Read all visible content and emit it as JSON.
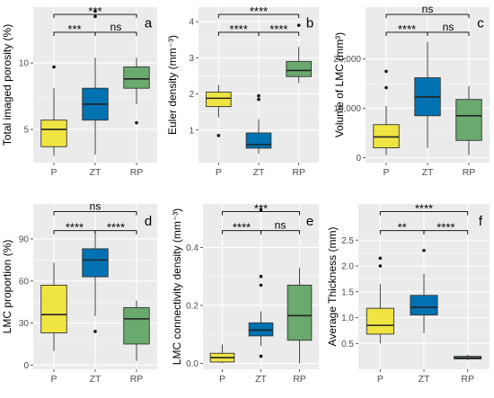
{
  "groups": [
    "P",
    "ZT",
    "RP"
  ],
  "colors": {
    "P": "#f0e442",
    "ZT": "#0072b2",
    "RP": "#6aaa6e",
    "axis": "#333333",
    "grid": "#ffffff"
  },
  "chart_data": [
    {
      "type": "box",
      "panel_letter": "a",
      "ylabel": "Total imaged porosity (%)",
      "ylim": [
        2.5,
        14.2
      ],
      "yticks": [
        5,
        10
      ],
      "yticklabels": [
        "5",
        "10"
      ],
      "categories": [
        "P",
        "ZT",
        "RP"
      ],
      "boxes": [
        {
          "group": "P",
          "whisker_low": 3.0,
          "q1": 3.7,
          "median": 5.0,
          "q3": 5.7,
          "whisker_high": 8.1,
          "outliers": [
            9.7
          ]
        },
        {
          "group": "ZT",
          "whisker_low": 3.1,
          "q1": 5.7,
          "median": 6.9,
          "q3": 8.1,
          "whisker_high": 10.4,
          "outliers": [
            13.5,
            13.9
          ]
        },
        {
          "group": "RP",
          "whisker_low": 6.9,
          "q1": 8.1,
          "median": 8.8,
          "q3": 9.7,
          "whisker_high": 10.4,
          "outliers": [
            5.5
          ]
        }
      ],
      "significance": [
        {
          "from": "P",
          "to": "ZT",
          "label": "***"
        },
        {
          "from": "ZT",
          "to": "RP",
          "label": "ns"
        },
        {
          "from": "P",
          "to": "RP",
          "label": "***"
        }
      ]
    },
    {
      "type": "box",
      "panel_letter": "b",
      "ylabel": "Euler density (mm⁻³)",
      "ylim": [
        0.1,
        4.4
      ],
      "yticks": [
        1,
        2,
        3,
        4
      ],
      "yticklabels": [
        "1",
        "2",
        "3",
        "4"
      ],
      "categories": [
        "P",
        "ZT",
        "RP"
      ],
      "boxes": [
        {
          "group": "P",
          "whisker_low": 1.35,
          "q1": 1.65,
          "median": 1.88,
          "q3": 2.05,
          "whisker_high": 2.25,
          "outliers": [
            0.85
          ]
        },
        {
          "group": "ZT",
          "whisker_low": 0.35,
          "q1": 0.5,
          "median": 0.6,
          "q3": 0.92,
          "whisker_high": 1.3,
          "outliers": [
            1.85,
            1.95
          ]
        },
        {
          "group": "RP",
          "whisker_low": 2.3,
          "q1": 2.48,
          "median": 2.65,
          "q3": 2.9,
          "whisker_high": 3.3,
          "outliers": [
            3.9
          ]
        }
      ],
      "significance": [
        {
          "from": "P",
          "to": "ZT",
          "label": "****"
        },
        {
          "from": "ZT",
          "to": "RP",
          "label": "****"
        },
        {
          "from": "P",
          "to": "RP",
          "label": "****"
        }
      ]
    },
    {
      "type": "box",
      "panel_letter": "c",
      "ylabel": "Volume of LMC (mm³)",
      "ylim": [
        -1000,
        30500
      ],
      "yticks": [
        0,
        10000,
        20000
      ],
      "yticklabels": [
        "0",
        "10,000",
        "20,000"
      ],
      "categories": [
        "P",
        "ZT",
        "RP"
      ],
      "boxes": [
        {
          "group": "P",
          "whisker_low": 500,
          "q1": 2000,
          "median": 4200,
          "q3": 6700,
          "whisker_high": 10500,
          "outliers": [
            14200,
            17500
          ]
        },
        {
          "group": "ZT",
          "whisker_low": 2000,
          "q1": 8500,
          "median": 12300,
          "q3": 16200,
          "whisker_high": 23500,
          "outliers": []
        },
        {
          "group": "RP",
          "whisker_low": 500,
          "q1": 3500,
          "median": 8500,
          "q3": 11800,
          "whisker_high": 14500,
          "outliers": []
        }
      ],
      "significance": [
        {
          "from": "P",
          "to": "ZT",
          "label": "****"
        },
        {
          "from": "ZT",
          "to": "RP",
          "label": "ns"
        },
        {
          "from": "P",
          "to": "RP",
          "label": "ns"
        }
      ]
    },
    {
      "type": "box",
      "panel_letter": "d",
      "ylabel": "LMC proportion (%)",
      "ylim": [
        -3,
        115
      ],
      "yticks": [
        0,
        30,
        60,
        90
      ],
      "yticklabels": [
        "0",
        "30",
        "60",
        "90"
      ],
      "categories": [
        "P",
        "ZT",
        "RP"
      ],
      "boxes": [
        {
          "group": "P",
          "whisker_low": 10,
          "q1": 23,
          "median": 36,
          "q3": 57,
          "whisker_high": 73,
          "outliers": []
        },
        {
          "group": "ZT",
          "whisker_low": 35,
          "q1": 63,
          "median": 75,
          "q3": 83,
          "whisker_high": 93,
          "outliers": [
            24
          ]
        },
        {
          "group": "RP",
          "whisker_low": 3,
          "q1": 15,
          "median": 33,
          "q3": 41,
          "whisker_high": 46,
          "outliers": []
        }
      ],
      "significance": [
        {
          "from": "P",
          "to": "ZT",
          "label": "****"
        },
        {
          "from": "ZT",
          "to": "RP",
          "label": "****"
        },
        {
          "from": "P",
          "to": "RP",
          "label": "ns"
        }
      ]
    },
    {
      "type": "box",
      "panel_letter": "e",
      "ylabel": "LMC connectivity density (mm⁻³)",
      "ylim": [
        -0.02,
        0.55
      ],
      "yticks": [
        0.0,
        0.2,
        0.4
      ],
      "yticklabels": [
        "0.0",
        "0.2",
        "0.4"
      ],
      "categories": [
        "P",
        "ZT",
        "RP"
      ],
      "boxes": [
        {
          "group": "P",
          "whisker_low": 0.0,
          "q1": 0.005,
          "median": 0.02,
          "q3": 0.035,
          "whisker_high": 0.065,
          "outliers": []
        },
        {
          "group": "ZT",
          "whisker_low": 0.06,
          "q1": 0.095,
          "median": 0.115,
          "q3": 0.14,
          "whisker_high": 0.18,
          "outliers": [
            0.025,
            0.27,
            0.3,
            0.53
          ]
        },
        {
          "group": "RP",
          "whisker_low": 0.0,
          "q1": 0.08,
          "median": 0.165,
          "q3": 0.27,
          "whisker_high": 0.33,
          "outliers": []
        }
      ],
      "significance": [
        {
          "from": "P",
          "to": "ZT",
          "label": "****"
        },
        {
          "from": "ZT",
          "to": "RP",
          "label": "ns"
        },
        {
          "from": "P",
          "to": "RP",
          "label": "***"
        }
      ]
    },
    {
      "type": "box",
      "panel_letter": "f",
      "ylabel": "Average Thickness (mm)",
      "ylim": [
        0.0,
        3.2
      ],
      "yticks": [
        0.5,
        1.0,
        1.5,
        2.0,
        2.5
      ],
      "yticklabels": [
        "0.5",
        "1.0",
        "1.5",
        "2.0",
        "2.5"
      ],
      "categories": [
        "P",
        "ZT",
        "RP"
      ],
      "boxes": [
        {
          "group": "P",
          "whisker_low": 0.5,
          "q1": 0.68,
          "median": 0.85,
          "q3": 1.18,
          "whisker_high": 1.65,
          "outliers": [
            2.0,
            2.15
          ]
        },
        {
          "group": "ZT",
          "whisker_low": 0.7,
          "q1": 1.05,
          "median": 1.2,
          "q3": 1.43,
          "whisker_high": 1.85,
          "outliers": [
            2.3
          ]
        },
        {
          "group": "RP",
          "whisker_low": 0.18,
          "q1": 0.2,
          "median": 0.22,
          "q3": 0.25,
          "whisker_high": 0.28,
          "outliers": []
        }
      ],
      "significance": [
        {
          "from": "P",
          "to": "ZT",
          "label": "**"
        },
        {
          "from": "ZT",
          "to": "RP",
          "label": "****"
        },
        {
          "from": "P",
          "to": "RP",
          "label": "****"
        }
      ]
    }
  ]
}
